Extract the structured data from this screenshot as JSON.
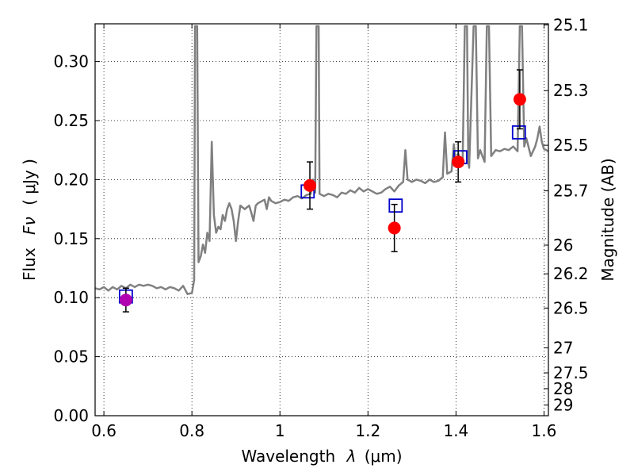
{
  "chart_data": {
    "type": "scatter",
    "xlabel": "Wavelength",
    "xlabel_symbol": "λ",
    "xlabel_unit": "(μm)",
    "ylabel": "Flux",
    "ylabel_symbol": "Fν",
    "ylabel_unit": "( μJy )",
    "y2label": "Magnitude (AB)",
    "xlim": [
      0.58,
      1.61
    ],
    "ylim": [
      0.0,
      0.332
    ],
    "grid": true,
    "colors": {
      "model": "#808080",
      "measured": "#ff0000",
      "measured_first": "#b000b0",
      "model_box": "#0000cc",
      "errorbar": "#000000"
    },
    "x_ticks": [
      {
        "value": 0.6,
        "label": "0.6"
      },
      {
        "value": 0.8,
        "label": "0.8"
      },
      {
        "value": 1.0,
        "label": "1"
      },
      {
        "value": 1.2,
        "label": "1.2"
      },
      {
        "value": 1.4,
        "label": "1.4"
      },
      {
        "value": 1.6,
        "label": "1.6"
      }
    ],
    "y_ticks": [
      {
        "value": 0.0,
        "label": "0.00"
      },
      {
        "value": 0.05,
        "label": "0.05"
      },
      {
        "value": 0.1,
        "label": "0.10"
      },
      {
        "value": 0.15,
        "label": "0.15"
      },
      {
        "value": 0.2,
        "label": "0.20"
      },
      {
        "value": 0.25,
        "label": "0.25"
      },
      {
        "value": 0.3,
        "label": "0.30"
      }
    ],
    "mag_ticks": [
      {
        "flux": 0.3311,
        "label": "25.1"
      },
      {
        "flux": 0.2754,
        "label": "25.3"
      },
      {
        "flux": 0.2291,
        "label": "25.5"
      },
      {
        "flux": 0.1905,
        "label": "25.7"
      },
      {
        "flux": 0.1445,
        "label": "26"
      },
      {
        "flux": 0.1202,
        "label": "26.2"
      },
      {
        "flux": 0.0912,
        "label": "26.5"
      },
      {
        "flux": 0.0575,
        "label": "27"
      },
      {
        "flux": 0.0363,
        "label": "27.5"
      },
      {
        "flux": 0.0229,
        "label": "28"
      },
      {
        "flux": 0.0091,
        "label": "29"
      }
    ],
    "measured": [
      {
        "x": 0.65,
        "y": 0.098,
        "err": 0.01
      },
      {
        "x": 1.068,
        "y": 0.195,
        "err": 0.02
      },
      {
        "x": 1.26,
        "y": 0.159,
        "err": 0.02
      },
      {
        "x": 1.405,
        "y": 0.215,
        "err": 0.017
      },
      {
        "x": 1.545,
        "y": 0.268,
        "err": 0.025
      }
    ],
    "model_photometry": [
      {
        "x": 0.65,
        "y": 0.101
      },
      {
        "x": 1.063,
        "y": 0.19
      },
      {
        "x": 1.263,
        "y": 0.178
      },
      {
        "x": 1.41,
        "y": 0.219
      },
      {
        "x": 1.543,
        "y": 0.24
      }
    ],
    "spectrum": [
      [
        0.58,
        0.108
      ],
      [
        0.59,
        0.107
      ],
      [
        0.6,
        0.109
      ],
      [
        0.61,
        0.106
      ],
      [
        0.62,
        0.109
      ],
      [
        0.63,
        0.107
      ],
      [
        0.64,
        0.11
      ],
      [
        0.65,
        0.108
      ],
      [
        0.66,
        0.111
      ],
      [
        0.67,
        0.109
      ],
      [
        0.68,
        0.111
      ],
      [
        0.69,
        0.11
      ],
      [
        0.7,
        0.111
      ],
      [
        0.71,
        0.11
      ],
      [
        0.72,
        0.108
      ],
      [
        0.73,
        0.109
      ],
      [
        0.74,
        0.107
      ],
      [
        0.75,
        0.109
      ],
      [
        0.76,
        0.108
      ],
      [
        0.77,
        0.106
      ],
      [
        0.78,
        0.11
      ],
      [
        0.79,
        0.103
      ],
      [
        0.8,
        0.104
      ],
      [
        0.805,
        0.115
      ],
      [
        0.807,
        0.33
      ],
      [
        0.812,
        0.33
      ],
      [
        0.815,
        0.13
      ],
      [
        0.82,
        0.135
      ],
      [
        0.825,
        0.145
      ],
      [
        0.83,
        0.138
      ],
      [
        0.835,
        0.155
      ],
      [
        0.84,
        0.148
      ],
      [
        0.845,
        0.232
      ],
      [
        0.85,
        0.17
      ],
      [
        0.855,
        0.155
      ],
      [
        0.86,
        0.16
      ],
      [
        0.865,
        0.158
      ],
      [
        0.87,
        0.17
      ],
      [
        0.875,
        0.165
      ],
      [
        0.88,
        0.175
      ],
      [
        0.885,
        0.18
      ],
      [
        0.89,
        0.175
      ],
      [
        0.895,
        0.165
      ],
      [
        0.9,
        0.148
      ],
      [
        0.905,
        0.165
      ],
      [
        0.91,
        0.178
      ],
      [
        0.92,
        0.175
      ],
      [
        0.93,
        0.178
      ],
      [
        0.935,
        0.172
      ],
      [
        0.94,
        0.165
      ],
      [
        0.945,
        0.178
      ],
      [
        0.95,
        0.18
      ],
      [
        0.96,
        0.182
      ],
      [
        0.965,
        0.183
      ],
      [
        0.97,
        0.175
      ],
      [
        0.975,
        0.185
      ],
      [
        0.98,
        0.182
      ],
      [
        0.99,
        0.18
      ],
      [
        1.0,
        0.181
      ],
      [
        1.01,
        0.183
      ],
      [
        1.02,
        0.182
      ],
      [
        1.03,
        0.185
      ],
      [
        1.04,
        0.186
      ],
      [
        1.05,
        0.184
      ],
      [
        1.06,
        0.187
      ],
      [
        1.07,
        0.188
      ],
      [
        1.075,
        0.2
      ],
      [
        1.08,
        0.189
      ],
      [
        1.083,
        0.33
      ],
      [
        1.088,
        0.33
      ],
      [
        1.09,
        0.188
      ],
      [
        1.1,
        0.186
      ],
      [
        1.11,
        0.188
      ],
      [
        1.12,
        0.187
      ],
      [
        1.13,
        0.185
      ],
      [
        1.14,
        0.189
      ],
      [
        1.15,
        0.188
      ],
      [
        1.16,
        0.191
      ],
      [
        1.17,
        0.189
      ],
      [
        1.18,
        0.193
      ],
      [
        1.19,
        0.19
      ],
      [
        1.2,
        0.192
      ],
      [
        1.21,
        0.19
      ],
      [
        1.22,
        0.188
      ],
      [
        1.23,
        0.189
      ],
      [
        1.24,
        0.192
      ],
      [
        1.25,
        0.194
      ],
      [
        1.26,
        0.19
      ],
      [
        1.27,
        0.195
      ],
      [
        1.28,
        0.198
      ],
      [
        1.285,
        0.225
      ],
      [
        1.29,
        0.2
      ],
      [
        1.3,
        0.198
      ],
      [
        1.31,
        0.2
      ],
      [
        1.32,
        0.199
      ],
      [
        1.33,
        0.197
      ],
      [
        1.34,
        0.2
      ],
      [
        1.35,
        0.198
      ],
      [
        1.36,
        0.199
      ],
      [
        1.37,
        0.202
      ],
      [
        1.375,
        0.24
      ],
      [
        1.38,
        0.205
      ],
      [
        1.39,
        0.207
      ],
      [
        1.395,
        0.23
      ],
      [
        1.4,
        0.212
      ],
      [
        1.405,
        0.222
      ],
      [
        1.41,
        0.218
      ],
      [
        1.415,
        0.212
      ],
      [
        1.42,
        0.33
      ],
      [
        1.425,
        0.33
      ],
      [
        1.428,
        0.215
      ],
      [
        1.43,
        0.21
      ],
      [
        1.44,
        0.33
      ],
      [
        1.445,
        0.33
      ],
      [
        1.45,
        0.218
      ],
      [
        1.455,
        0.225
      ],
      [
        1.46,
        0.22
      ],
      [
        1.465,
        0.215
      ],
      [
        1.47,
        0.33
      ],
      [
        1.475,
        0.33
      ],
      [
        1.48,
        0.22
      ],
      [
        1.49,
        0.225
      ],
      [
        1.5,
        0.224
      ],
      [
        1.51,
        0.226
      ],
      [
        1.52,
        0.225
      ],
      [
        1.53,
        0.228
      ],
      [
        1.54,
        0.224
      ],
      [
        1.545,
        0.33
      ],
      [
        1.55,
        0.33
      ],
      [
        1.555,
        0.228
      ],
      [
        1.56,
        0.235
      ],
      [
        1.57,
        0.22
      ],
      [
        1.58,
        0.228
      ],
      [
        1.585,
        0.235
      ],
      [
        1.59,
        0.245
      ],
      [
        1.595,
        0.232
      ],
      [
        1.6,
        0.226
      ],
      [
        1.61,
        0.224
      ]
    ]
  }
}
